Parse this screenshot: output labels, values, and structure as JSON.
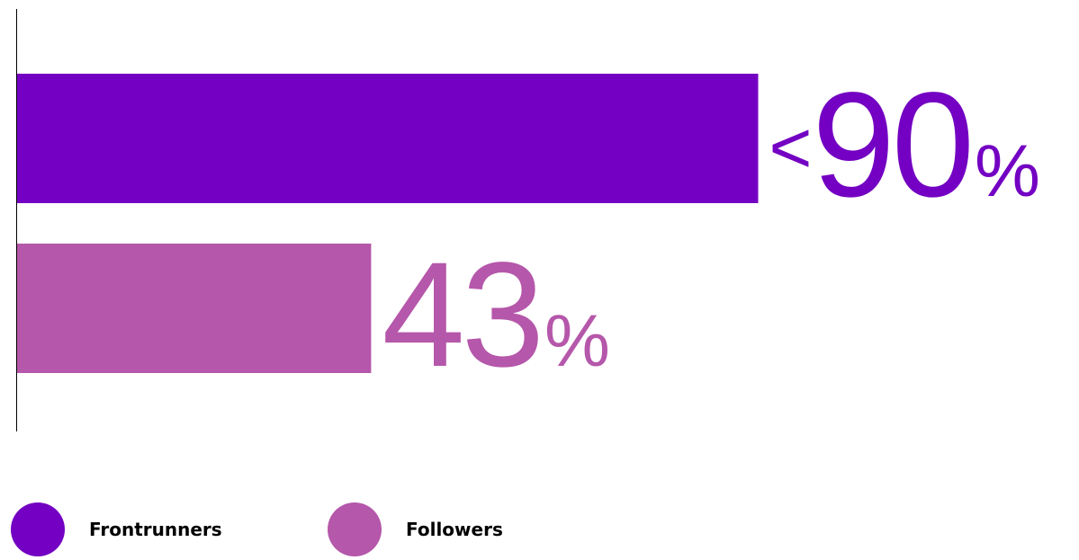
{
  "chart_data": {
    "type": "bar",
    "orientation": "horizontal",
    "categories": [
      "Frontrunners",
      "Followers"
    ],
    "series": [
      {
        "name": "Frontrunners",
        "value": 90,
        "label_prefix": "<",
        "label_number": "90",
        "label_suffix": "%",
        "color": "#7300C2"
      },
      {
        "name": "Followers",
        "value": 43,
        "label_prefix": "",
        "label_number": "43",
        "label_suffix": "%",
        "color": "#B557AA"
      }
    ],
    "xlim": [
      0,
      100
    ],
    "grid": false,
    "legend": "bottom-left"
  },
  "legend": {
    "items": [
      {
        "label": "Frontrunners",
        "color": "#7300C2"
      },
      {
        "label": "Followers",
        "color": "#B557AA"
      }
    ]
  }
}
